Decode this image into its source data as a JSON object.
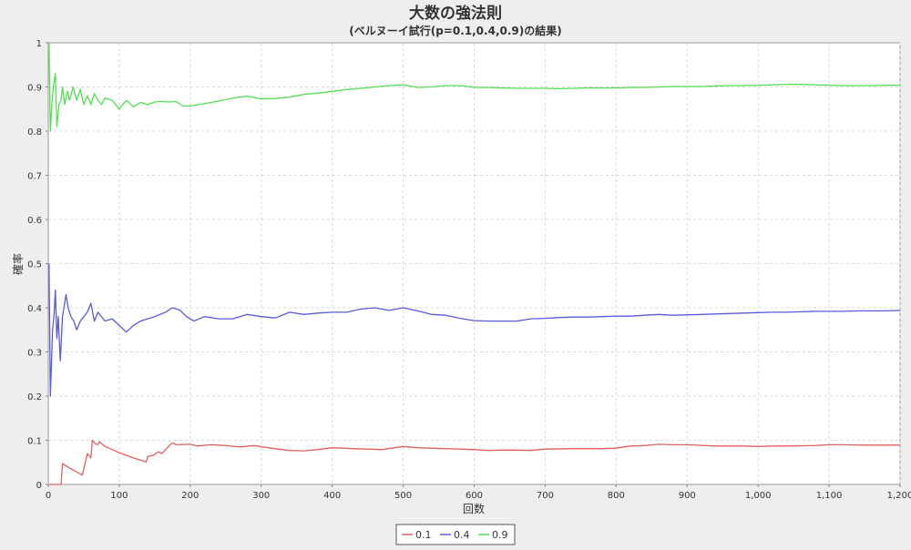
{
  "chart_data": {
    "type": "line",
    "title": "大数の強法則",
    "subtitle": "(ベルヌーイ試行(p=0.1,0.4,0.9)の結果)",
    "xlabel": "回数",
    "ylabel": "確率",
    "xlim": [
      0,
      1200
    ],
    "ylim": [
      0,
      1
    ],
    "x_ticks": [
      "0",
      "100",
      "200",
      "300",
      "400",
      "500",
      "600",
      "700",
      "800",
      "900",
      "1,000",
      "1,100",
      "1,200"
    ],
    "y_ticks": [
      "0",
      "0.1",
      "0.2",
      "0.3",
      "0.4",
      "0.5",
      "0.6",
      "0.7",
      "0.8",
      "0.9",
      "1"
    ],
    "grid": true,
    "legend_position": "bottom-center",
    "series": [
      {
        "name": "0.1",
        "color": "#e06060",
        "points": [
          [
            1,
            0
          ],
          [
            10,
            0
          ],
          [
            18,
            0
          ],
          [
            20,
            0.047
          ],
          [
            30,
            0.037
          ],
          [
            45,
            0.024
          ],
          [
            48,
            0.021
          ],
          [
            55,
            0.07
          ],
          [
            60,
            0.06
          ],
          [
            62,
            0.1
          ],
          [
            66,
            0.093
          ],
          [
            70,
            0.09
          ],
          [
            72,
            0.097
          ],
          [
            80,
            0.086
          ],
          [
            100,
            0.072
          ],
          [
            120,
            0.06
          ],
          [
            138,
            0.051
          ],
          [
            140,
            0.063
          ],
          [
            148,
            0.066
          ],
          [
            155,
            0.074
          ],
          [
            160,
            0.07
          ],
          [
            170,
            0.087
          ],
          [
            175,
            0.094
          ],
          [
            180,
            0.09
          ],
          [
            200,
            0.091
          ],
          [
            210,
            0.087
          ],
          [
            230,
            0.09
          ],
          [
            250,
            0.088
          ],
          [
            270,
            0.085
          ],
          [
            290,
            0.088
          ],
          [
            310,
            0.083
          ],
          [
            340,
            0.077
          ],
          [
            360,
            0.076
          ],
          [
            380,
            0.079
          ],
          [
            400,
            0.083
          ],
          [
            430,
            0.081
          ],
          [
            470,
            0.079
          ],
          [
            500,
            0.086
          ],
          [
            520,
            0.083
          ],
          [
            560,
            0.081
          ],
          [
            600,
            0.079
          ],
          [
            620,
            0.077
          ],
          [
            650,
            0.078
          ],
          [
            680,
            0.077
          ],
          [
            700,
            0.08
          ],
          [
            740,
            0.081
          ],
          [
            780,
            0.081
          ],
          [
            800,
            0.082
          ],
          [
            820,
            0.087
          ],
          [
            840,
            0.088
          ],
          [
            860,
            0.091
          ],
          [
            880,
            0.09
          ],
          [
            900,
            0.09
          ],
          [
            940,
            0.087
          ],
          [
            980,
            0.087
          ],
          [
            1000,
            0.086
          ],
          [
            1020,
            0.087
          ],
          [
            1040,
            0.087
          ],
          [
            1080,
            0.088
          ],
          [
            1100,
            0.09
          ],
          [
            1120,
            0.09
          ],
          [
            1150,
            0.089
          ],
          [
            1200,
            0.089
          ]
        ]
      },
      {
        "name": "0.4",
        "color": "#5a5ae0",
        "points": [
          [
            1,
            0.5
          ],
          [
            3,
            0.2
          ],
          [
            6,
            0.35
          ],
          [
            8,
            0.38
          ],
          [
            10,
            0.44
          ],
          [
            12,
            0.33
          ],
          [
            14,
            0.38
          ],
          [
            17,
            0.28
          ],
          [
            20,
            0.38
          ],
          [
            25,
            0.43
          ],
          [
            28,
            0.4
          ],
          [
            32,
            0.38
          ],
          [
            36,
            0.37
          ],
          [
            40,
            0.35
          ],
          [
            45,
            0.37
          ],
          [
            50,
            0.38
          ],
          [
            55,
            0.39
          ],
          [
            60,
            0.41
          ],
          [
            65,
            0.37
          ],
          [
            70,
            0.39
          ],
          [
            80,
            0.37
          ],
          [
            90,
            0.375
          ],
          [
            100,
            0.36
          ],
          [
            110,
            0.345
          ],
          [
            120,
            0.36
          ],
          [
            130,
            0.37
          ],
          [
            140,
            0.375
          ],
          [
            150,
            0.38
          ],
          [
            165,
            0.39
          ],
          [
            175,
            0.4
          ],
          [
            185,
            0.395
          ],
          [
            195,
            0.38
          ],
          [
            205,
            0.37
          ],
          [
            220,
            0.38
          ],
          [
            240,
            0.375
          ],
          [
            260,
            0.375
          ],
          [
            280,
            0.385
          ],
          [
            300,
            0.38
          ],
          [
            320,
            0.377
          ],
          [
            340,
            0.39
          ],
          [
            360,
            0.385
          ],
          [
            380,
            0.388
          ],
          [
            400,
            0.39
          ],
          [
            420,
            0.39
          ],
          [
            440,
            0.397
          ],
          [
            460,
            0.4
          ],
          [
            480,
            0.394
          ],
          [
            500,
            0.4
          ],
          [
            520,
            0.393
          ],
          [
            540,
            0.385
          ],
          [
            560,
            0.383
          ],
          [
            580,
            0.376
          ],
          [
            600,
            0.371
          ],
          [
            620,
            0.37
          ],
          [
            640,
            0.37
          ],
          [
            660,
            0.37
          ],
          [
            680,
            0.375
          ],
          [
            700,
            0.376
          ],
          [
            720,
            0.378
          ],
          [
            740,
            0.379
          ],
          [
            760,
            0.379
          ],
          [
            780,
            0.38
          ],
          [
            800,
            0.381
          ],
          [
            820,
            0.381
          ],
          [
            840,
            0.383
          ],
          [
            860,
            0.385
          ],
          [
            880,
            0.383
          ],
          [
            900,
            0.384
          ],
          [
            920,
            0.385
          ],
          [
            940,
            0.386
          ],
          [
            960,
            0.387
          ],
          [
            980,
            0.388
          ],
          [
            1000,
            0.389
          ],
          [
            1020,
            0.39
          ],
          [
            1040,
            0.39
          ],
          [
            1060,
            0.391
          ],
          [
            1080,
            0.392
          ],
          [
            1100,
            0.392
          ],
          [
            1120,
            0.392
          ],
          [
            1140,
            0.393
          ],
          [
            1160,
            0.393
          ],
          [
            1180,
            0.393
          ],
          [
            1200,
            0.394
          ]
        ]
      },
      {
        "name": "0.9",
        "color": "#50e050",
        "points": [
          [
            1,
            1
          ],
          [
            3,
            0.8
          ],
          [
            5,
            0.86
          ],
          [
            7,
            0.9
          ],
          [
            10,
            0.93
          ],
          [
            12,
            0.81
          ],
          [
            15,
            0.86
          ],
          [
            18,
            0.87
          ],
          [
            20,
            0.9
          ],
          [
            23,
            0.86
          ],
          [
            27,
            0.89
          ],
          [
            30,
            0.87
          ],
          [
            35,
            0.9
          ],
          [
            40,
            0.87
          ],
          [
            45,
            0.895
          ],
          [
            50,
            0.86
          ],
          [
            55,
            0.88
          ],
          [
            60,
            0.86
          ],
          [
            65,
            0.885
          ],
          [
            70,
            0.87
          ],
          [
            75,
            0.86
          ],
          [
            80,
            0.875
          ],
          [
            90,
            0.87
          ],
          [
            100,
            0.85
          ],
          [
            110,
            0.87
          ],
          [
            120,
            0.855
          ],
          [
            130,
            0.865
          ],
          [
            140,
            0.86
          ],
          [
            150,
            0.866
          ],
          [
            160,
            0.867
          ],
          [
            170,
            0.866
          ],
          [
            180,
            0.867
          ],
          [
            190,
            0.857
          ],
          [
            200,
            0.857
          ],
          [
            220,
            0.862
          ],
          [
            240,
            0.868
          ],
          [
            260,
            0.875
          ],
          [
            280,
            0.879
          ],
          [
            300,
            0.873
          ],
          [
            320,
            0.874
          ],
          [
            340,
            0.877
          ],
          [
            360,
            0.883
          ],
          [
            380,
            0.886
          ],
          [
            400,
            0.89
          ],
          [
            420,
            0.894
          ],
          [
            440,
            0.897
          ],
          [
            460,
            0.9
          ],
          [
            480,
            0.903
          ],
          [
            500,
            0.905
          ],
          [
            520,
            0.899
          ],
          [
            540,
            0.9
          ],
          [
            560,
            0.903
          ],
          [
            580,
            0.903
          ],
          [
            600,
            0.899
          ],
          [
            620,
            0.899
          ],
          [
            640,
            0.898
          ],
          [
            660,
            0.897
          ],
          [
            680,
            0.897
          ],
          [
            700,
            0.897
          ],
          [
            720,
            0.896
          ],
          [
            740,
            0.897
          ],
          [
            760,
            0.898
          ],
          [
            780,
            0.898
          ],
          [
            800,
            0.898
          ],
          [
            820,
            0.899
          ],
          [
            840,
            0.899
          ],
          [
            860,
            0.9
          ],
          [
            880,
            0.901
          ],
          [
            900,
            0.901
          ],
          [
            920,
            0.901
          ],
          [
            940,
            0.902
          ],
          [
            960,
            0.903
          ],
          [
            980,
            0.903
          ],
          [
            1000,
            0.904
          ],
          [
            1020,
            0.905
          ],
          [
            1040,
            0.906
          ],
          [
            1060,
            0.906
          ],
          [
            1080,
            0.905
          ],
          [
            1100,
            0.904
          ],
          [
            1120,
            0.903
          ],
          [
            1140,
            0.903
          ],
          [
            1160,
            0.903
          ],
          [
            1180,
            0.904
          ],
          [
            1200,
            0.904
          ]
        ]
      }
    ]
  }
}
